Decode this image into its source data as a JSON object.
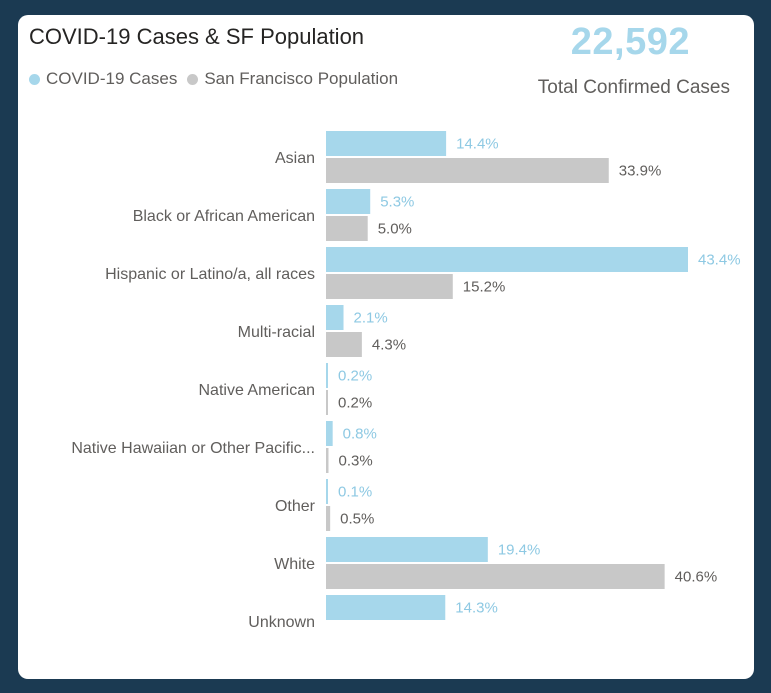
{
  "title": "COVID-19 Cases & SF Population",
  "legend": {
    "cases_label": "COVID-19 Cases",
    "population_label": "San Francisco Population"
  },
  "kpi": {
    "value": "22,592",
    "label": "Total Confirmed Cases"
  },
  "colors": {
    "cases": "#a6d7eb",
    "population": "#c8c8c8",
    "kpi": "#a6d7eb"
  },
  "chart_data": {
    "type": "bar",
    "orientation": "horizontal",
    "categories": [
      "Asian",
      "Black or African American",
      "Hispanic or Latino/a, all races",
      "Multi-racial",
      "Native American",
      "Native Hawaiian or Other Pacific...",
      "Other",
      "White",
      "Unknown"
    ],
    "series": [
      {
        "name": "COVID-19 Cases",
        "values": [
          14.4,
          5.3,
          43.4,
          2.1,
          0.2,
          0.8,
          0.1,
          19.4,
          14.3
        ],
        "labels": [
          "14.4%",
          "5.3%",
          "43.4%",
          "2.1%",
          "0.2%",
          "0.8%",
          "0.1%",
          "19.4%",
          "14.3%"
        ]
      },
      {
        "name": "San Francisco Population",
        "values": [
          33.9,
          5.0,
          15.2,
          4.3,
          0.2,
          0.3,
          0.5,
          40.6,
          null
        ],
        "labels": [
          "33.9%",
          "5.0%",
          "15.2%",
          "4.3%",
          "0.2%",
          "0.3%",
          "0.5%",
          "40.6%",
          ""
        ]
      }
    ],
    "xlim": [
      0,
      43.4
    ],
    "grid": false,
    "legend_position": "top-left"
  }
}
